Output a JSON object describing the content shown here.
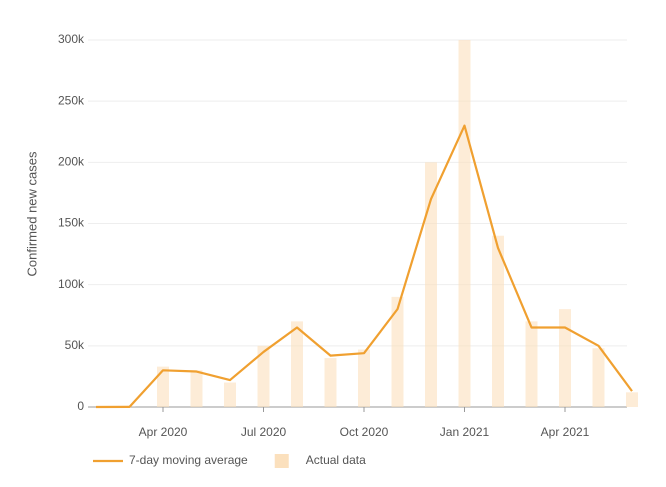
{
  "chart_data": {
    "type": "line",
    "y_label": "Confirmed new cases",
    "x": [
      "2020-02",
      "2020-03",
      "2020-04",
      "2020-05",
      "2020-06",
      "2020-07",
      "2020-08",
      "2020-09",
      "2020-10",
      "2020-11",
      "2020-12",
      "2021-01",
      "2021-02",
      "2021-03",
      "2021-04",
      "2021-05",
      "2021-06"
    ],
    "xlim": [
      "2020-02",
      "2021-06"
    ],
    "xticks": [
      {
        "value": "2020-04",
        "label": "Apr 2020"
      },
      {
        "value": "2020-07",
        "label": "Jul 2020"
      },
      {
        "value": "2020-10",
        "label": "Oct 2020"
      },
      {
        "value": "2021-01",
        "label": "Jan 2021"
      },
      {
        "value": "2021-04",
        "label": "Apr 2021"
      }
    ],
    "ylim": [
      0,
      300000
    ],
    "yticks": [
      {
        "value": 0,
        "label": "0"
      },
      {
        "value": 50000,
        "label": "50k"
      },
      {
        "value": 100000,
        "label": "100k"
      },
      {
        "value": 150000,
        "label": "150k"
      },
      {
        "value": 200000,
        "label": "200k"
      },
      {
        "value": 250000,
        "label": "250k"
      },
      {
        "value": 300000,
        "label": "300k"
      }
    ],
    "grid": true,
    "series": [
      {
        "name": "7-day moving average",
        "color": "#f0a030",
        "mark": "line",
        "values": [
          0,
          100,
          30000,
          29000,
          22000,
          45000,
          65000,
          42000,
          44000,
          80000,
          170000,
          230000,
          130000,
          65000,
          65000,
          50000,
          13000
        ]
      },
      {
        "name": "Actual data",
        "color": "#fbe0bd",
        "mark": "bar",
        "values": [
          0,
          200,
          33000,
          30000,
          20000,
          50000,
          70000,
          40000,
          47000,
          90000,
          200000,
          300000,
          140000,
          70000,
          80000,
          48000,
          12000
        ]
      }
    ]
  }
}
